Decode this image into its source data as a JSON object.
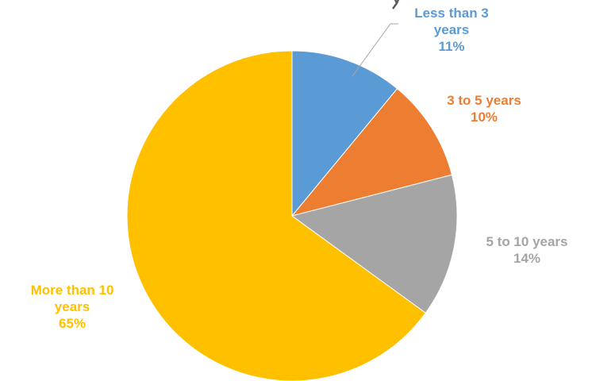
{
  "chart_data": {
    "type": "pie",
    "slices": [
      {
        "label_lines": [
          "Less than 3",
          "years"
        ],
        "value": 11,
        "value_label": "11%",
        "color": "#5b9bd5"
      },
      {
        "label_lines": [
          "3 to 5 years"
        ],
        "value": 10,
        "value_label": "10%",
        "color": "#ed7d31"
      },
      {
        "label_lines": [
          "5 to 10 years"
        ],
        "value": 14,
        "value_label": "14%",
        "color": "#a5a5a5"
      },
      {
        "label_lines": [
          "More than 10",
          "years"
        ],
        "value": 65,
        "value_label": "65%",
        "color": "#ffc000"
      }
    ],
    "start": "12 o'clock",
    "direction": "clockwise",
    "legend": "none",
    "title": ""
  }
}
